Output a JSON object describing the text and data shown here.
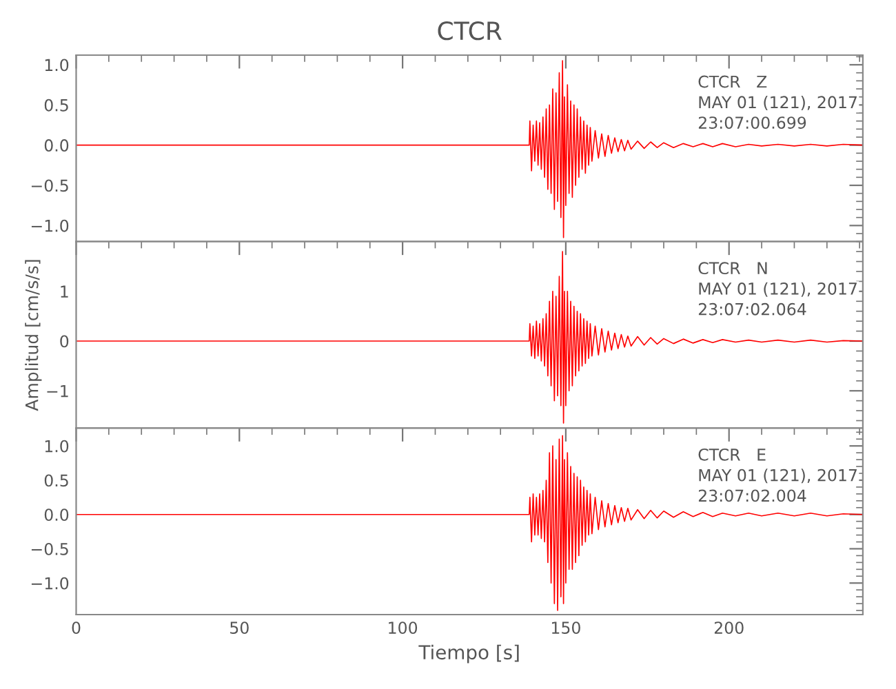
{
  "chart_data": [
    {
      "type": "line",
      "title": "CTCR",
      "annotations": [
        "CTCR   Z",
        "MAY 01 (121), 2017",
        "23:07:00.699"
      ],
      "tick_labels": "y",
      "grid": false,
      "xlim": [
        0,
        241
      ],
      "xticks": [
        0,
        50,
        100,
        150,
        200
      ],
      "ylim": [
        -1.2,
        1.12
      ],
      "yticks": [
        {
          "value": -1.0,
          "label": "−1.0"
        },
        {
          "value": -0.5,
          "label": "−0.5"
        },
        {
          "value": 0,
          "label": "0.0"
        },
        {
          "value": 0.5,
          "label": "0.5"
        },
        {
          "value": 1.0,
          "label": "1.0"
        }
      ],
      "series": [
        {
          "color": "#ff0000",
          "x": [
            0,
            138.8,
            139,
            139.5,
            140,
            140.5,
            141,
            141.5,
            142,
            142.5,
            143,
            143.5,
            144,
            144.5,
            145,
            145.5,
            146,
            146.5,
            147,
            147.5,
            148,
            148.5,
            149,
            149.3,
            149.6,
            150,
            150.5,
            151,
            151.5,
            152,
            152.5,
            153,
            153.5,
            154,
            154.5,
            155,
            155.5,
            156,
            156.5,
            157,
            157.5,
            158,
            159,
            160,
            161,
            162,
            163,
            164,
            165,
            166,
            167,
            168,
            169,
            170,
            172,
            174,
            176,
            178,
            180,
            183,
            186,
            189,
            192,
            195,
            198,
            202,
            206,
            210,
            215,
            220,
            225,
            230,
            235,
            241
          ],
          "values": [
            0,
            0,
            0.3,
            -0.32,
            0.25,
            -0.2,
            0.3,
            -0.25,
            0.28,
            -0.3,
            0.35,
            -0.4,
            0.45,
            -0.55,
            0.5,
            -0.6,
            0.7,
            -0.8,
            0.65,
            -0.7,
            0.9,
            -0.9,
            1.05,
            -1.15,
            0.6,
            -0.75,
            0.75,
            -0.6,
            0.55,
            -0.65,
            0.5,
            -0.5,
            0.45,
            -0.4,
            0.35,
            -0.3,
            0.3,
            -0.35,
            0.25,
            -0.25,
            0.22,
            -0.2,
            0.18,
            -0.16,
            0.14,
            -0.14,
            0.12,
            -0.1,
            0.09,
            -0.08,
            0.07,
            -0.07,
            0.06,
            -0.05,
            0.05,
            -0.04,
            0.04,
            -0.03,
            0.03,
            -0.03,
            0.02,
            -0.02,
            0.02,
            -0.02,
            0.02,
            -0.02,
            0.01,
            -0.01,
            0.01,
            -0.01,
            0.01,
            -0.01,
            0.01,
            0
          ]
        }
      ]
    },
    {
      "type": "line",
      "ylabel": "Amplitud [cm/s/s]",
      "annotations": [
        "CTCR   N",
        "MAY 01 (121), 2017",
        "23:07:02.064"
      ],
      "tick_labels": "y",
      "grid": false,
      "xlim": [
        0,
        241
      ],
      "xticks": [
        0,
        50,
        100,
        150,
        200
      ],
      "ylim": [
        -1.75,
        2.0
      ],
      "yticks": [
        {
          "value": -1,
          "label": "−1"
        },
        0,
        1
      ],
      "series": [
        {
          "color": "#ff0000",
          "x": [
            0,
            138.8,
            139,
            139.5,
            140,
            140.5,
            141,
            141.5,
            142,
            142.5,
            143,
            143.5,
            144,
            144.5,
            145,
            145.5,
            146,
            146.5,
            147,
            147.5,
            148,
            148.5,
            149,
            149.3,
            149.6,
            150,
            150.5,
            151,
            151.5,
            152,
            152.5,
            153,
            153.5,
            154,
            154.5,
            155,
            155.5,
            156,
            156.5,
            157,
            157.5,
            158,
            159,
            160,
            161,
            162,
            163,
            164,
            165,
            166,
            167,
            168,
            169,
            170,
            172,
            174,
            176,
            178,
            180,
            183,
            186,
            189,
            192,
            195,
            198,
            202,
            206,
            210,
            215,
            220,
            225,
            230,
            235,
            241
          ],
          "values": [
            0,
            0,
            0.35,
            -0.3,
            0.3,
            -0.35,
            0.4,
            -0.3,
            0.35,
            -0.4,
            0.45,
            -0.5,
            0.55,
            -0.7,
            0.8,
            -0.9,
            1.0,
            -1.2,
            0.9,
            -1.1,
            1.3,
            -1.3,
            1.8,
            -1.65,
            1.0,
            -1.3,
            1.0,
            -1.0,
            0.8,
            -0.9,
            0.7,
            -0.7,
            0.6,
            -0.6,
            0.55,
            -0.5,
            0.45,
            -0.45,
            0.4,
            -0.35,
            0.35,
            -0.3,
            0.3,
            -0.28,
            0.25,
            -0.22,
            0.2,
            -0.18,
            0.16,
            -0.15,
            0.13,
            -0.12,
            0.1,
            -0.1,
            0.09,
            -0.08,
            0.07,
            -0.06,
            0.05,
            -0.05,
            0.04,
            -0.04,
            0.03,
            -0.03,
            0.03,
            -0.02,
            0.02,
            -0.02,
            0.02,
            -0.02,
            0.02,
            -0.02,
            0.01,
            0
          ]
        }
      ]
    },
    {
      "type": "line",
      "xlabel": "Tiempo [s]",
      "annotations": [
        "CTCR   E",
        "MAY 01 (121), 2017",
        "23:07:02.004"
      ],
      "grid": false,
      "xlim": [
        0,
        241
      ],
      "xticks": [
        0,
        50,
        100,
        150,
        200
      ],
      "ylim": [
        -1.46,
        1.26
      ],
      "yticks": [
        {
          "value": -1.0,
          "label": "−1.0"
        },
        {
          "value": -0.5,
          "label": "−0.5"
        },
        {
          "value": 0,
          "label": "0.0"
        },
        {
          "value": 0.5,
          "label": "0.5"
        },
        {
          "value": 1.0,
          "label": "1.0"
        }
      ],
      "series": [
        {
          "color": "#ff0000",
          "x": [
            0,
            138.8,
            139,
            139.5,
            140,
            140.5,
            141,
            141.5,
            142,
            142.5,
            143,
            143.5,
            144,
            144.5,
            145,
            145.5,
            146,
            146.5,
            147,
            147.5,
            148,
            148.5,
            149,
            149.3,
            149.6,
            150,
            150.5,
            151,
            151.5,
            152,
            152.5,
            153,
            153.5,
            154,
            154.5,
            155,
            155.5,
            156,
            156.5,
            157,
            157.5,
            158,
            159,
            160,
            161,
            162,
            163,
            164,
            165,
            166,
            167,
            168,
            169,
            170,
            172,
            174,
            176,
            178,
            180,
            183,
            186,
            189,
            192,
            195,
            198,
            202,
            206,
            210,
            215,
            220,
            225,
            230,
            235,
            241
          ],
          "values": [
            0,
            0,
            0.25,
            -0.4,
            0.3,
            -0.3,
            0.25,
            -0.3,
            0.3,
            -0.35,
            0.35,
            -0.4,
            0.5,
            -0.7,
            0.9,
            -1.0,
            1.0,
            -1.3,
            0.8,
            -1.4,
            1.1,
            -1.2,
            1.15,
            -1.3,
            0.8,
            -1.0,
            0.9,
            -0.8,
            0.7,
            -0.8,
            0.6,
            -0.7,
            0.55,
            -0.6,
            0.5,
            -0.45,
            0.4,
            -0.4,
            0.35,
            -0.3,
            0.3,
            -0.28,
            0.25,
            -0.22,
            0.2,
            -0.18,
            0.16,
            -0.15,
            0.13,
            -0.12,
            0.1,
            -0.1,
            0.09,
            -0.08,
            0.07,
            -0.06,
            0.06,
            -0.05,
            0.05,
            -0.04,
            0.04,
            -0.03,
            0.03,
            -0.03,
            0.02,
            -0.02,
            0.02,
            -0.02,
            0.02,
            -0.02,
            0.02,
            -0.02,
            0.01,
            0
          ]
        }
      ]
    }
  ]
}
